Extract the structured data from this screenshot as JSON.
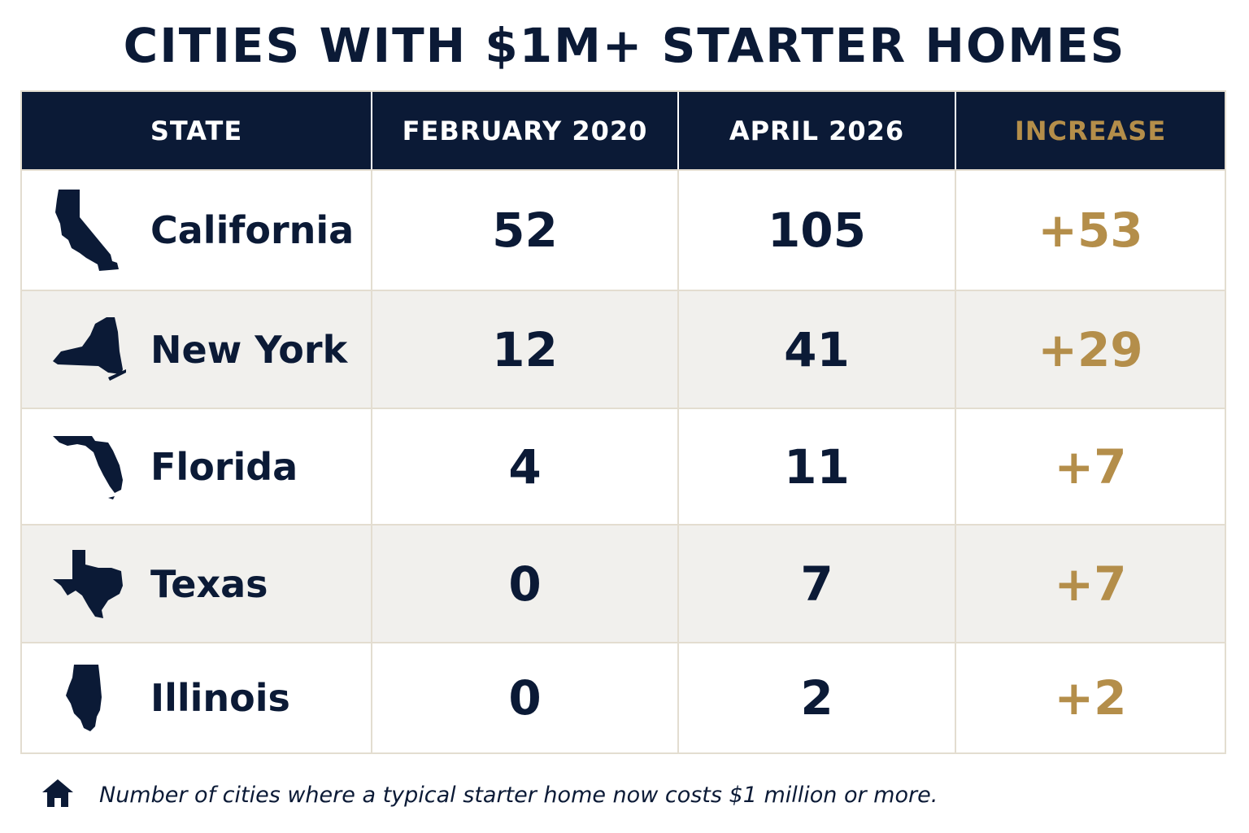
{
  "title": "CITIES WITH $1M+ STARTER HOMES",
  "columns": [
    "STATE",
    "FEBRUARY 2020",
    "APRIL 2026",
    "INCREASE"
  ],
  "colors": {
    "navy": "#0b1a36",
    "gold": "#b48e4a",
    "alt_row": "#f1f0ed",
    "border": "#e3ddd0"
  },
  "chart_data": {
    "type": "table",
    "title": "CITIES WITH $1M+ STARTER HOMES",
    "columns": [
      "STATE",
      "FEBRUARY 2020",
      "APRIL 2026",
      "INCREASE"
    ],
    "rows": [
      {
        "state": "California",
        "icon": "california-state-icon",
        "feb2020": "52",
        "apr2026": "105",
        "increase": "+53"
      },
      {
        "state": "New York",
        "icon": "new-york-state-icon",
        "feb2020": "12",
        "apr2026": "41",
        "increase": "+29"
      },
      {
        "state": "Florida",
        "icon": "florida-state-icon",
        "feb2020": "4",
        "apr2026": "11",
        "increase": "+7"
      },
      {
        "state": "Texas",
        "icon": "texas-state-icon",
        "feb2020": "0",
        "apr2026": "7",
        "increase": "+7"
      },
      {
        "state": "Illinois",
        "icon": "illinois-state-icon",
        "feb2020": "0",
        "apr2026": "2",
        "increase": "+2"
      }
    ]
  },
  "footer": {
    "icon": "home-icon",
    "note": "Number of cities where a typical starter home now costs $1 million or more."
  }
}
